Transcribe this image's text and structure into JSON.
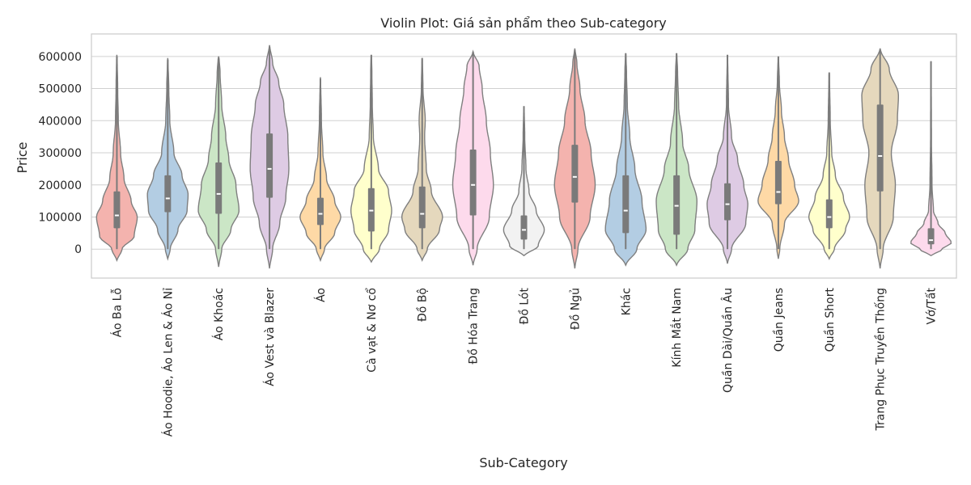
{
  "chart_data": {
    "type": "violin",
    "title": "Violin Plot: Giá sản phẩm theo Sub-category",
    "xlabel": "Sub-Category",
    "ylabel": "Price",
    "ylim": [
      -90000,
      670000
    ],
    "yticks": [
      0,
      100000,
      200000,
      300000,
      400000,
      500000,
      600000
    ],
    "ytick_labels": [
      "0",
      "100000",
      "200000",
      "300000",
      "400000",
      "500000",
      "600000"
    ],
    "grid": true,
    "categories": [
      {
        "label": "Áo Ba Lỗ",
        "color": "#f4b3ae",
        "min": 0,
        "q1": 65000,
        "median": 105000,
        "q3": 180000,
        "max": 600000,
        "kde_min": -35000,
        "kde_max": 605000,
        "density": [
          [
            -35000,
            0.02
          ],
          [
            0,
            0.25
          ],
          [
            40000,
            0.85
          ],
          [
            100000,
            1.0
          ],
          [
            150000,
            0.7
          ],
          [
            220000,
            0.35
          ],
          [
            300000,
            0.18
          ],
          [
            400000,
            0.07
          ],
          [
            500000,
            0.04
          ],
          [
            605000,
            0.01
          ]
        ]
      },
      {
        "label": "Áo Hoodie, Áo Len & Áo Nỉ",
        "color": "#b3cde3",
        "min": 0,
        "q1": 115000,
        "median": 158000,
        "q3": 230000,
        "max": 590000,
        "kde_min": -30000,
        "kde_max": 595000,
        "density": [
          [
            -30000,
            0.02
          ],
          [
            0,
            0.12
          ],
          [
            60000,
            0.5
          ],
          [
            120000,
            0.95
          ],
          [
            170000,
            1.0
          ],
          [
            230000,
            0.7
          ],
          [
            300000,
            0.3
          ],
          [
            400000,
            0.1
          ],
          [
            500000,
            0.05
          ],
          [
            595000,
            0.01
          ]
        ]
      },
      {
        "label": "Áo Khoác",
        "color": "#cbe6c6",
        "min": 0,
        "q1": 110000,
        "median": 172000,
        "q3": 270000,
        "max": 595000,
        "kde_min": -55000,
        "kde_max": 600000,
        "density": [
          [
            -55000,
            0.01
          ],
          [
            0,
            0.15
          ],
          [
            60000,
            0.6
          ],
          [
            120000,
            1.0
          ],
          [
            200000,
            0.85
          ],
          [
            280000,
            0.5
          ],
          [
            350000,
            0.35
          ],
          [
            450000,
            0.15
          ],
          [
            550000,
            0.07
          ],
          [
            600000,
            0.02
          ]
        ]
      },
      {
        "label": "Áo Vest và Blazer",
        "color": "#decbe4",
        "min": 0,
        "q1": 160000,
        "median": 250000,
        "q3": 360000,
        "max": 630000,
        "kde_min": -60000,
        "kde_max": 635000,
        "density": [
          [
            -60000,
            0.01
          ],
          [
            0,
            0.15
          ],
          [
            80000,
            0.5
          ],
          [
            160000,
            0.8
          ],
          [
            250000,
            0.95
          ],
          [
            350000,
            0.9
          ],
          [
            450000,
            0.7
          ],
          [
            520000,
            0.45
          ],
          [
            580000,
            0.15
          ],
          [
            635000,
            0.01
          ]
        ]
      },
      {
        "label": "Áo",
        "color": "#fed9a6",
        "min": 0,
        "q1": 75000,
        "median": 110000,
        "q3": 160000,
        "max": 530000,
        "kde_min": -35000,
        "kde_max": 535000,
        "density": [
          [
            -35000,
            0.02
          ],
          [
            0,
            0.2
          ],
          [
            50000,
            0.7
          ],
          [
            100000,
            1.0
          ],
          [
            150000,
            0.7
          ],
          [
            220000,
            0.3
          ],
          [
            300000,
            0.12
          ],
          [
            400000,
            0.05
          ],
          [
            535000,
            0.01
          ]
        ]
      },
      {
        "label": "Cà vạt & Nơ cổ",
        "color": "#ffffcc",
        "min": 0,
        "q1": 55000,
        "median": 120000,
        "q3": 190000,
        "max": 605000,
        "kde_min": -40000,
        "kde_max": 605000,
        "density": [
          [
            -40000,
            0.03
          ],
          [
            0,
            0.4
          ],
          [
            60000,
            0.85
          ],
          [
            120000,
            1.0
          ],
          [
            180000,
            0.85
          ],
          [
            250000,
            0.35
          ],
          [
            350000,
            0.1
          ],
          [
            450000,
            0.05
          ],
          [
            550000,
            0.03
          ],
          [
            605000,
            0.01
          ]
        ]
      },
      {
        "label": "Đồ Bộ",
        "color": "#e5d8bd",
        "min": 0,
        "q1": 65000,
        "median": 110000,
        "q3": 195000,
        "max": 595000,
        "kde_min": -35000,
        "kde_max": 595000,
        "density": [
          [
            -35000,
            0.02
          ],
          [
            0,
            0.25
          ],
          [
            60000,
            0.85
          ],
          [
            100000,
            1.0
          ],
          [
            180000,
            0.45
          ],
          [
            250000,
            0.2
          ],
          [
            350000,
            0.12
          ],
          [
            400000,
            0.15
          ],
          [
            500000,
            0.04
          ],
          [
            595000,
            0.01
          ]
        ]
      },
      {
        "label": "Đồ Hóa Trang",
        "color": "#fddaec",
        "min": 0,
        "q1": 105000,
        "median": 200000,
        "q3": 310000,
        "max": 615000,
        "kde_min": -50000,
        "kde_max": 615000,
        "density": [
          [
            -50000,
            0.01
          ],
          [
            0,
            0.2
          ],
          [
            100000,
            0.8
          ],
          [
            200000,
            1.0
          ],
          [
            300000,
            0.85
          ],
          [
            400000,
            0.65
          ],
          [
            500000,
            0.45
          ],
          [
            570000,
            0.3
          ],
          [
            615000,
            0.01
          ]
        ]
      },
      {
        "label": "Đồ Lót",
        "color": "#f2f2f2",
        "min": 0,
        "q1": 30000,
        "median": 60000,
        "q3": 105000,
        "max": 445000,
        "kde_min": -20000,
        "kde_max": 445000,
        "density": [
          [
            -20000,
            0.05
          ],
          [
            10000,
            0.7
          ],
          [
            60000,
            1.0
          ],
          [
            120000,
            0.6
          ],
          [
            180000,
            0.25
          ],
          [
            250000,
            0.1
          ],
          [
            350000,
            0.04
          ],
          [
            445000,
            0.01
          ]
        ]
      },
      {
        "label": "Đồ Ngủ",
        "color": "#f4b3ae",
        "min": 0,
        "q1": 145000,
        "median": 225000,
        "q3": 325000,
        "max": 620000,
        "kde_min": -60000,
        "kde_max": 625000,
        "density": [
          [
            -60000,
            0.01
          ],
          [
            0,
            0.15
          ],
          [
            100000,
            0.75
          ],
          [
            200000,
            1.0
          ],
          [
            300000,
            0.8
          ],
          [
            400000,
            0.5
          ],
          [
            500000,
            0.25
          ],
          [
            580000,
            0.1
          ],
          [
            625000,
            0.01
          ]
        ]
      },
      {
        "label": "Khác",
        "color": "#b3cde3",
        "min": 0,
        "q1": 50000,
        "median": 120000,
        "q3": 230000,
        "max": 610000,
        "kde_min": -50000,
        "kde_max": 610000,
        "density": [
          [
            -50000,
            0.02
          ],
          [
            0,
            0.55
          ],
          [
            60000,
            1.0
          ],
          [
            150000,
            0.8
          ],
          [
            250000,
            0.45
          ],
          [
            350000,
            0.2
          ],
          [
            450000,
            0.08
          ],
          [
            550000,
            0.04
          ],
          [
            610000,
            0.01
          ]
        ]
      },
      {
        "label": "Kính Mắt Nam",
        "color": "#cbe6c6",
        "min": 0,
        "q1": 45000,
        "median": 135000,
        "q3": 230000,
        "max": 610000,
        "kde_min": -50000,
        "kde_max": 610000,
        "density": [
          [
            -50000,
            0.02
          ],
          [
            0,
            0.55
          ],
          [
            60000,
            0.9
          ],
          [
            150000,
            1.0
          ],
          [
            250000,
            0.6
          ],
          [
            330000,
            0.3
          ],
          [
            450000,
            0.1
          ],
          [
            550000,
            0.05
          ],
          [
            610000,
            0.01
          ]
        ]
      },
      {
        "label": "Quần Dài/Quần Âu",
        "color": "#decbe4",
        "min": 0,
        "q1": 90000,
        "median": 140000,
        "q3": 205000,
        "max": 605000,
        "kde_min": -45000,
        "kde_max": 605000,
        "density": [
          [
            -45000,
            0.01
          ],
          [
            0,
            0.2
          ],
          [
            80000,
            0.9
          ],
          [
            140000,
            1.0
          ],
          [
            200000,
            0.8
          ],
          [
            280000,
            0.5
          ],
          [
            350000,
            0.2
          ],
          [
            450000,
            0.05
          ],
          [
            605000,
            0.01
          ]
        ]
      },
      {
        "label": "Quần Jeans",
        "color": "#fed9a6",
        "min": 0,
        "q1": 140000,
        "median": 178000,
        "q3": 275000,
        "max": 600000,
        "kde_min": -30000,
        "kde_max": 600000,
        "density": [
          [
            -30000,
            0.01
          ],
          [
            0,
            0.07
          ],
          [
            80000,
            0.3
          ],
          [
            150000,
            1.0
          ],
          [
            200000,
            0.8
          ],
          [
            280000,
            0.5
          ],
          [
            350000,
            0.3
          ],
          [
            430000,
            0.15
          ],
          [
            520000,
            0.05
          ],
          [
            600000,
            0.01
          ]
        ]
      },
      {
        "label": "Quần Short",
        "color": "#ffffcc",
        "min": 0,
        "q1": 65000,
        "median": 100000,
        "q3": 155000,
        "max": 550000,
        "kde_min": -30000,
        "kde_max": 550000,
        "density": [
          [
            -30000,
            0.02
          ],
          [
            0,
            0.25
          ],
          [
            60000,
            0.8
          ],
          [
            100000,
            1.0
          ],
          [
            160000,
            0.7
          ],
          [
            230000,
            0.3
          ],
          [
            300000,
            0.12
          ],
          [
            400000,
            0.05
          ],
          [
            550000,
            0.01
          ]
        ]
      },
      {
        "label": "Trang Phục Truyền Thống",
        "color": "#e5d8bd",
        "min": 0,
        "q1": 180000,
        "median": 290000,
        "q3": 450000,
        "max": 620000,
        "kde_min": -60000,
        "kde_max": 625000,
        "density": [
          [
            -60000,
            0.01
          ],
          [
            0,
            0.15
          ],
          [
            100000,
            0.65
          ],
          [
            200000,
            0.75
          ],
          [
            300000,
            0.55
          ],
          [
            400000,
            0.85
          ],
          [
            480000,
            0.9
          ],
          [
            560000,
            0.45
          ],
          [
            625000,
            0.01
          ]
        ]
      },
      {
        "label": "Vớ/Tất",
        "color": "#fddaec",
        "min": 0,
        "q1": 15000,
        "median": 28000,
        "q3": 65000,
        "max": 585000,
        "kde_min": -20000,
        "kde_max": 585000,
        "density": [
          [
            -20000,
            0.05
          ],
          [
            0,
            0.55
          ],
          [
            20000,
            1.0
          ],
          [
            50000,
            0.7
          ],
          [
            80000,
            0.35
          ],
          [
            120000,
            0.12
          ],
          [
            200000,
            0.05
          ],
          [
            350000,
            0.02
          ],
          [
            585000,
            0.005
          ]
        ]
      }
    ]
  }
}
